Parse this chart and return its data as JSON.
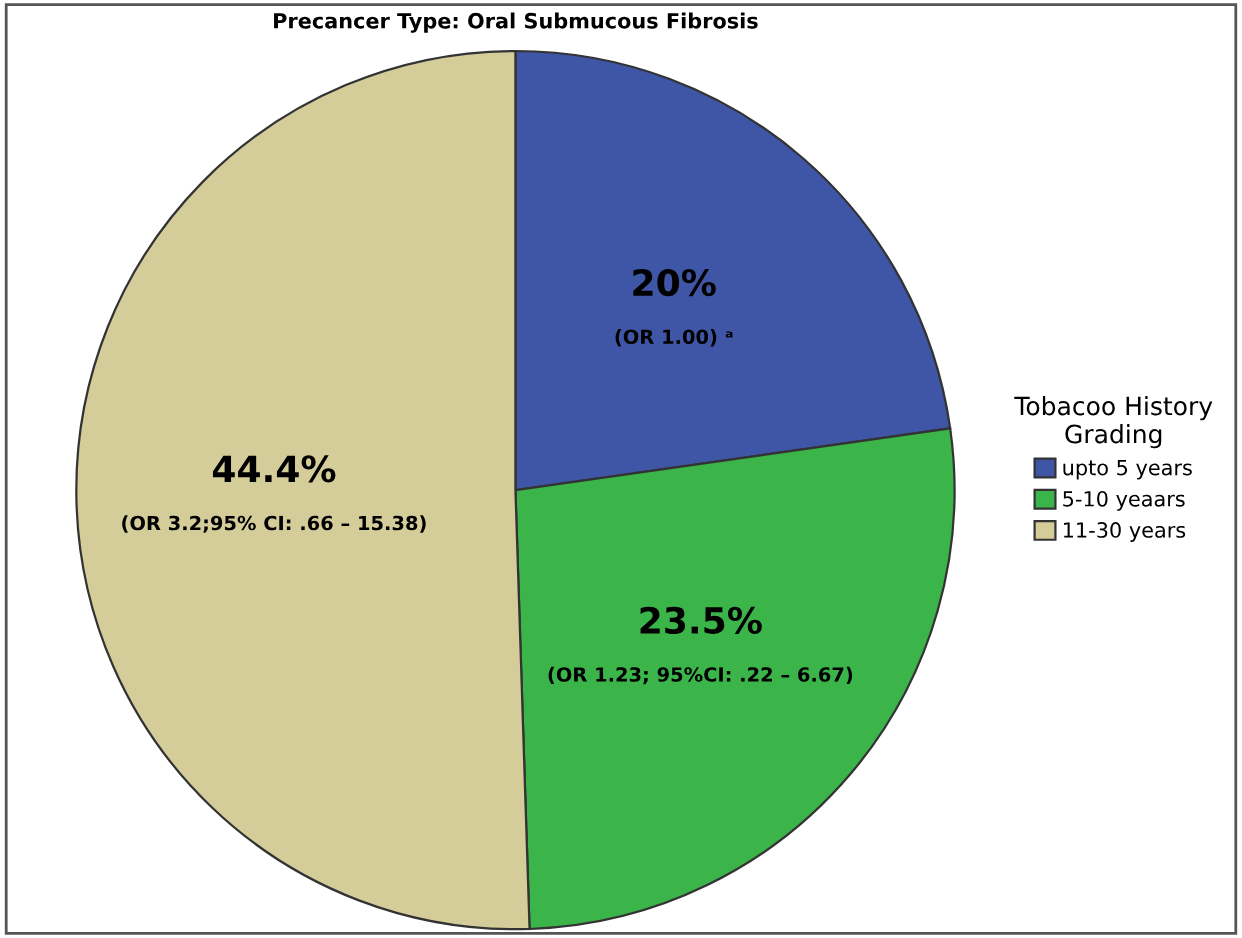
{
  "chart_data": {
    "type": "pie",
    "title": "Precancer Type: Oral Submucous Fibrosis",
    "categories": [
      "upto 5 years",
      "5-10 yeaars",
      "11-30 years"
    ],
    "values": [
      20,
      23.5,
      44.4
    ],
    "colors": [
      "#3f56a6",
      "#3bb44a",
      "#d4cd9a"
    ],
    "value_labels": [
      "20%",
      "23.5%",
      "44.4%"
    ],
    "annotations": [
      "(OR 1.00) ᵃ",
      "(OR 1.23; 95%CI: .22 – 6.67)",
      "(OR 3.2;95% CI: .66 – 15.38)"
    ],
    "legend_title": "Tobacoo History\nGrading",
    "legend": "right"
  }
}
